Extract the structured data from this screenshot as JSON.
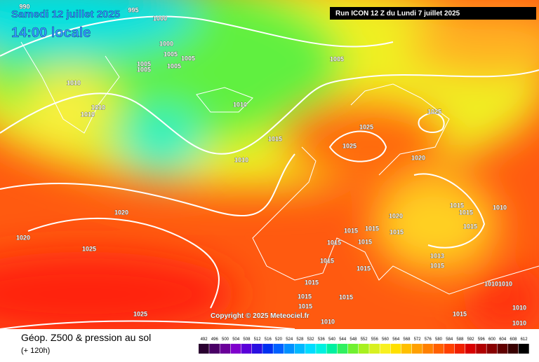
{
  "header": {
    "date": "Samedi 12 juillet 2025",
    "time": "14:00 locale",
    "run": "Run ICON 12 Z du Lundi 7 juillet 2025",
    "copyright": "Copyright © 2025 Meteociel.fr"
  },
  "footer": {
    "title": "Géop. Z500 & pression au sol",
    "lead": "(+ 120h)"
  },
  "isobar_labels": [
    "990",
    "995",
    "1000",
    "1000",
    "1005",
    "1005",
    "1005",
    "1005",
    "1005",
    "1005",
    "1010",
    "1010",
    "1010",
    "1010",
    "1015",
    "1010",
    "1025",
    "1025",
    "1025",
    "1020",
    "1020",
    "1020",
    "1025",
    "1020",
    "1015",
    "1010",
    "1015",
    "1015",
    "1015",
    "1015",
    "1015",
    "1015",
    "1015",
    "1015",
    "1015",
    "1015",
    "1015",
    "1015",
    "1015",
    "1010",
    "1015",
    "1025",
    "1013",
    "1010",
    "1010",
    "1010",
    "1010",
    "1015"
  ],
  "scale": {
    "values": [
      492,
      496,
      500,
      504,
      508,
      512,
      516,
      520,
      524,
      528,
      532,
      536,
      540,
      544,
      548,
      552,
      556,
      560,
      564,
      568,
      572,
      576,
      580,
      584,
      588,
      592,
      596,
      600,
      604,
      608,
      612
    ],
    "colors": [
      "#2a0030",
      "#4a0066",
      "#6a0099",
      "#7f00cc",
      "#5a00d9",
      "#2a10e0",
      "#0030f0",
      "#0060ff",
      "#0090ff",
      "#00b8ff",
      "#00dcff",
      "#00f0e0",
      "#00f0a0",
      "#30f060",
      "#70f030",
      "#a8f020",
      "#d8f020",
      "#f8f020",
      "#ffe000",
      "#ffc000",
      "#ffa000",
      "#ff8000",
      "#ff6000",
      "#ff4000",
      "#f02000",
      "#d80000",
      "#b00000",
      "#880000",
      "#600000",
      "#380000",
      "#000000"
    ]
  }
}
